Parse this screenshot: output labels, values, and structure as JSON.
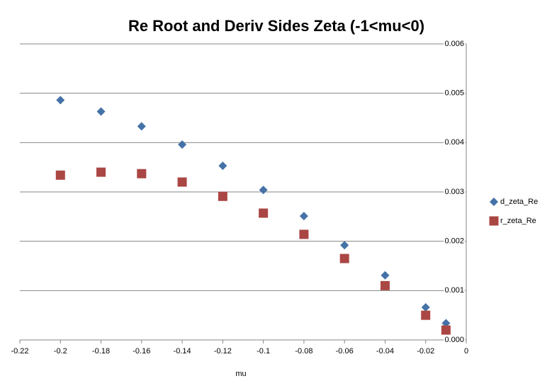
{
  "chart_data": {
    "type": "scatter",
    "title": "Re Root and Deriv Sides Zeta (-1<mu<0)",
    "x_label": "mu",
    "x": [
      -0.2,
      -0.18,
      -0.16,
      -0.14,
      -0.12,
      -0.1,
      -0.08,
      -0.06,
      -0.04,
      -0.02,
      -0.01
    ],
    "series": [
      {
        "name": "d_zeta_Re",
        "color": "#4572a7",
        "marker": "diamond",
        "values": [
          0.00486,
          0.00463,
          0.00433,
          0.00396,
          0.00353,
          0.00304,
          0.00251,
          0.00192,
          0.00131,
          0.00066,
          0.00034
        ]
      },
      {
        "name": "r_zeta_Re",
        "color": "#aa4643",
        "marker": "square",
        "values": [
          0.00334,
          0.0034,
          0.00337,
          0.0032,
          0.00291,
          0.00257,
          0.00214,
          0.00165,
          0.0011,
          0.0005,
          0.0002
        ]
      }
    ],
    "xlim": [
      -0.22,
      0
    ],
    "xticks": [
      -0.22,
      -0.2,
      -0.18,
      -0.16,
      -0.14,
      -0.12,
      -0.1,
      -0.08,
      -0.06,
      -0.04,
      -0.02,
      0
    ],
    "ylim": [
      0,
      0.006
    ],
    "yticks": [
      {
        "value": 0,
        "label": "0.000"
      },
      0.001,
      0.002,
      0.003,
      0.004,
      0.005,
      0.006
    ],
    "grid": true,
    "legend": "right"
  }
}
